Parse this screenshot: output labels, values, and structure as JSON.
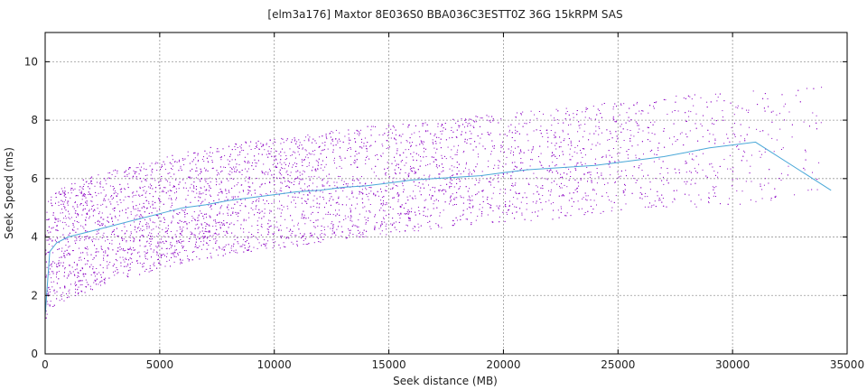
{
  "chart_data": {
    "type": "scatter",
    "title": "[elm3a176] Maxtor 8E036S0 BBA036C3ESTT0Z 36G 15kRPM SAS",
    "xlabel": "Seek distance (MB)",
    "ylabel": "Seek Speed (ms)",
    "xlim": [
      0,
      35000
    ],
    "ylim": [
      0,
      11
    ],
    "xticks": [
      0,
      5000,
      10000,
      15000,
      20000,
      25000,
      30000,
      35000
    ],
    "yticks": [
      0,
      2,
      4,
      6,
      8,
      10
    ],
    "grid": true,
    "point_color": "#8a00c2",
    "line_color": "#4aa8d8",
    "scatter_envelope": {
      "x": [
        0,
        500,
        1000,
        2000,
        3000,
        4000,
        5000,
        6000,
        8000,
        10000,
        12000,
        14000,
        16000,
        18000,
        20000,
        22000,
        24000,
        26000,
        28000,
        30000,
        32000,
        34000
      ],
      "y_min": [
        1.2,
        1.7,
        1.9,
        2.2,
        2.5,
        2.7,
        2.9,
        3.1,
        3.4,
        3.6,
        3.8,
        4.0,
        4.2,
        4.4,
        4.5,
        4.6,
        4.8,
        4.9,
        5.0,
        5.1,
        5.3,
        5.4
      ],
      "y_max": [
        5.2,
        5.6,
        5.8,
        6.1,
        6.3,
        6.5,
        6.7,
        6.9,
        7.2,
        7.4,
        7.6,
        7.8,
        7.9,
        8.1,
        8.3,
        8.4,
        8.6,
        8.7,
        8.9,
        9.0,
        9.1,
        9.2
      ],
      "density": [
        1.0,
        1.0,
        1.0,
        1.0,
        1.0,
        1.0,
        0.95,
        0.92,
        0.88,
        0.84,
        0.8,
        0.76,
        0.7,
        0.62,
        0.55,
        0.5,
        0.45,
        0.38,
        0.3,
        0.22,
        0.12,
        0.08
      ]
    },
    "series": [
      {
        "type": "line",
        "x": [
          0,
          200,
          500,
          1000,
          2000,
          3000,
          4000,
          5000,
          6000,
          7000,
          8000,
          9000,
          10000,
          11000,
          12000,
          13000,
          14000,
          15000,
          16000,
          17000,
          18000,
          19000,
          20000,
          21000,
          22000,
          23000,
          24000,
          25000,
          26000,
          27000,
          28000,
          29000,
          30000,
          31000,
          34300
        ],
        "y": [
          1.3,
          3.5,
          3.8,
          4.0,
          4.2,
          4.4,
          4.6,
          4.8,
          5.0,
          5.1,
          5.25,
          5.35,
          5.45,
          5.55,
          5.6,
          5.7,
          5.75,
          5.85,
          5.95,
          6.0,
          6.05,
          6.1,
          6.2,
          6.3,
          6.35,
          6.4,
          6.45,
          6.55,
          6.65,
          6.75,
          6.9,
          7.05,
          7.15,
          7.25,
          5.6
        ]
      }
    ]
  }
}
